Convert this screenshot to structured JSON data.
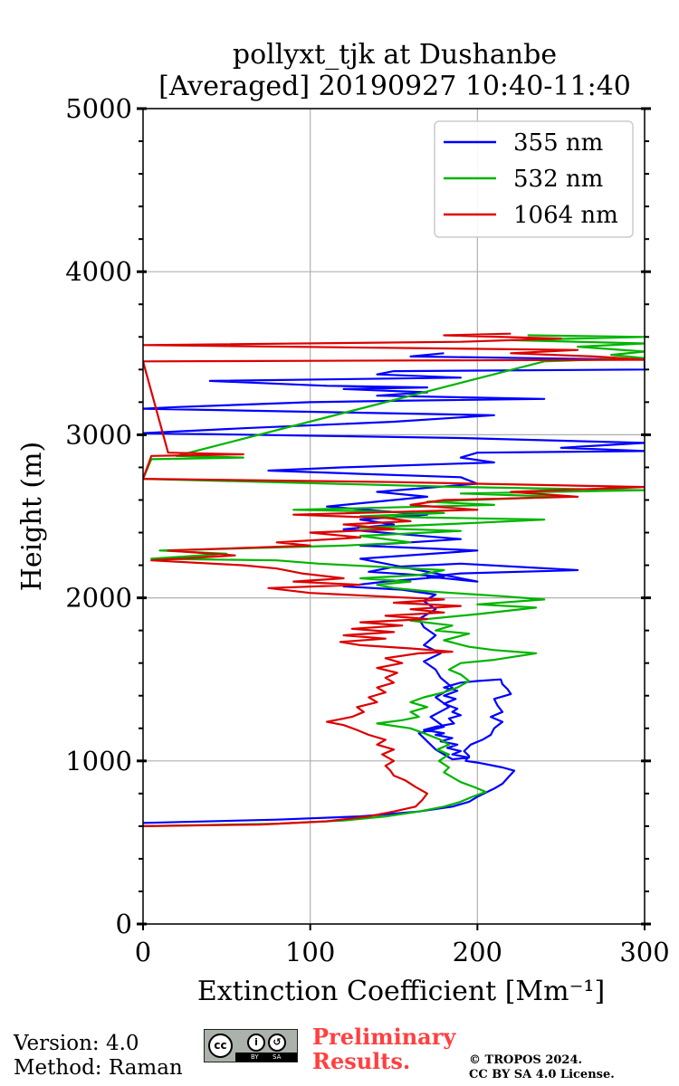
{
  "chart_data": {
    "type": "line",
    "title_line1": "pollyxt_tjk at Dushanbe",
    "title_line2": "[Averaged] 20190927 10:40-11:40",
    "xlabel": "Extinction Coefficient [Mm⁻¹]",
    "ylabel": "Height (m)",
    "xlim": [
      0,
      300
    ],
    "ylim": [
      0,
      5000
    ],
    "xticks": [
      0,
      100,
      200,
      300
    ],
    "yticks": [
      0,
      1000,
      2000,
      3000,
      4000,
      5000
    ],
    "grid": true,
    "legend_position": "top-right",
    "series": [
      {
        "name": "355 nm",
        "color": "#0000ff",
        "points": [
          [
            0,
            620
          ],
          [
            80,
            640
          ],
          [
            130,
            660
          ],
          [
            165,
            690
          ],
          [
            185,
            720
          ],
          [
            195,
            750
          ],
          [
            200,
            780
          ],
          [
            204,
            800
          ],
          [
            210,
            830
          ],
          [
            215,
            860
          ],
          [
            222,
            940
          ],
          [
            215,
            960
          ],
          [
            200,
            990
          ],
          [
            193,
            1000
          ],
          [
            195,
            1030
          ],
          [
            192,
            1060
          ],
          [
            196,
            1100
          ],
          [
            203,
            1130
          ],
          [
            208,
            1160
          ],
          [
            210,
            1200
          ],
          [
            215,
            1240
          ],
          [
            208,
            1270
          ],
          [
            215,
            1300
          ],
          [
            212,
            1340
          ],
          [
            210,
            1380
          ],
          [
            220,
            1410
          ],
          [
            218,
            1440
          ],
          [
            215,
            1470
          ],
          [
            214,
            1500
          ],
          [
            200,
            1490
          ],
          [
            190,
            1480
          ],
          [
            183,
            1460
          ],
          [
            180,
            1450
          ],
          [
            188,
            1430
          ],
          [
            180,
            1400
          ],
          [
            187,
            1380
          ],
          [
            180,
            1350
          ],
          [
            188,
            1320
          ],
          [
            185,
            1300
          ],
          [
            190,
            1280
          ],
          [
            183,
            1260
          ],
          [
            186,
            1230
          ],
          [
            175,
            1210
          ],
          [
            168,
            1190
          ],
          [
            180,
            1170
          ],
          [
            175,
            1160
          ],
          [
            185,
            1140
          ],
          [
            178,
            1120
          ],
          [
            188,
            1100
          ],
          [
            182,
            1080
          ],
          [
            190,
            1060
          ],
          [
            185,
            1040
          ],
          [
            195,
            1020
          ],
          [
            185,
            1010
          ],
          [
            175,
            1070
          ],
          [
            170,
            1120
          ],
          [
            165,
            1170
          ],
          [
            180,
            1210
          ],
          [
            172,
            1270
          ],
          [
            183,
            1330
          ],
          [
            175,
            1390
          ],
          [
            185,
            1450
          ],
          [
            178,
            1510
          ],
          [
            175,
            1560
          ],
          [
            168,
            1610
          ],
          [
            178,
            1660
          ],
          [
            168,
            1710
          ],
          [
            175,
            1770
          ],
          [
            168,
            1820
          ],
          [
            165,
            1870
          ],
          [
            175,
            1930
          ],
          [
            168,
            1980
          ],
          [
            175,
            2020
          ],
          [
            155,
            2050
          ],
          [
            120,
            2070
          ],
          [
            145,
            2100
          ],
          [
            180,
            2130
          ],
          [
            135,
            2160
          ],
          [
            150,
            2190
          ],
          [
            190,
            2210
          ],
          [
            260,
            2170
          ],
          [
            190,
            2150
          ],
          [
            170,
            2130
          ],
          [
            200,
            2100
          ],
          [
            130,
            2240
          ],
          [
            200,
            2290
          ],
          [
            130,
            2320
          ],
          [
            190,
            2360
          ],
          [
            155,
            2390
          ],
          [
            120,
            2420
          ],
          [
            150,
            2450
          ],
          [
            130,
            2480
          ],
          [
            170,
            2510
          ],
          [
            110,
            2560
          ],
          [
            150,
            2600
          ],
          [
            170,
            2620
          ],
          [
            140,
            2650
          ],
          [
            200,
            2700
          ],
          [
            190,
            2740
          ],
          [
            130,
            2760
          ],
          [
            75,
            2780
          ],
          [
            120,
            2800
          ],
          [
            210,
            2830
          ],
          [
            190,
            2860
          ],
          [
            200,
            2890
          ],
          [
            300,
            2900
          ],
          [
            250,
            2920
          ],
          [
            300,
            2950
          ],
          [
            190,
            2980
          ],
          [
            0,
            3010
          ],
          [
            60,
            3040
          ],
          [
            150,
            3080
          ],
          [
            210,
            3120
          ],
          [
            0,
            3160
          ],
          [
            20,
            3170
          ],
          [
            100,
            3200
          ],
          [
            160,
            3210
          ],
          [
            240,
            3220
          ],
          [
            140,
            3240
          ],
          [
            170,
            3260
          ],
          [
            120,
            3280
          ],
          [
            170,
            3290
          ],
          [
            110,
            3300
          ],
          [
            40,
            3330
          ],
          [
            190,
            3350
          ],
          [
            140,
            3370
          ],
          [
            150,
            3390
          ],
          [
            300,
            3400
          ],
          [
            300,
            3460
          ],
          [
            160,
            3480
          ],
          [
            180,
            3500
          ]
        ]
      },
      {
        "name": "532 nm",
        "color": "#00b400",
        "points": [
          [
            0,
            600
          ],
          [
            80,
            615
          ],
          [
            120,
            635
          ],
          [
            145,
            660
          ],
          [
            165,
            690
          ],
          [
            180,
            720
          ],
          [
            190,
            750
          ],
          [
            197,
            780
          ],
          [
            205,
            810
          ],
          [
            198,
            840
          ],
          [
            190,
            870
          ],
          [
            185,
            900
          ],
          [
            180,
            930
          ],
          [
            183,
            960
          ],
          [
            177,
            1000
          ],
          [
            183,
            1040
          ],
          [
            176,
            1070
          ],
          [
            183,
            1100
          ],
          [
            178,
            1130
          ],
          [
            168,
            1170
          ],
          [
            160,
            1200
          ],
          [
            140,
            1230
          ],
          [
            155,
            1250
          ],
          [
            165,
            1270
          ],
          [
            160,
            1300
          ],
          [
            170,
            1330
          ],
          [
            160,
            1360
          ],
          [
            168,
            1390
          ],
          [
            180,
            1420
          ],
          [
            188,
            1450
          ],
          [
            195,
            1490
          ],
          [
            190,
            1530
          ],
          [
            183,
            1560
          ],
          [
            190,
            1600
          ],
          [
            210,
            1620
          ],
          [
            235,
            1660
          ],
          [
            210,
            1680
          ],
          [
            195,
            1700
          ],
          [
            180,
            1740
          ],
          [
            195,
            1780
          ],
          [
            175,
            1800
          ],
          [
            185,
            1830
          ],
          [
            160,
            1860
          ],
          [
            200,
            1900
          ],
          [
            235,
            1940
          ],
          [
            200,
            1960
          ],
          [
            240,
            1990
          ],
          [
            215,
            2010
          ],
          [
            170,
            2040
          ],
          [
            150,
            2060
          ],
          [
            140,
            2080
          ],
          [
            160,
            2100
          ],
          [
            130,
            2120
          ],
          [
            165,
            2140
          ],
          [
            180,
            2170
          ],
          [
            105,
            2210
          ],
          [
            80,
            2230
          ],
          [
            5,
            2240
          ],
          [
            50,
            2270
          ],
          [
            10,
            2290
          ],
          [
            120,
            2320
          ],
          [
            160,
            2340
          ],
          [
            130,
            2380
          ],
          [
            190,
            2410
          ],
          [
            130,
            2430
          ],
          [
            200,
            2460
          ],
          [
            240,
            2480
          ],
          [
            130,
            2500
          ],
          [
            180,
            2520
          ],
          [
            90,
            2540
          ],
          [
            210,
            2570
          ],
          [
            170,
            2590
          ],
          [
            250,
            2620
          ],
          [
            190,
            2640
          ],
          [
            300,
            2660
          ],
          [
            190,
            2680
          ],
          [
            0,
            2730
          ],
          [
            5,
            2850
          ],
          [
            60,
            2860
          ],
          [
            20,
            2870
          ],
          [
            240,
            3450
          ],
          [
            300,
            3470
          ],
          [
            280,
            3490
          ],
          [
            300,
            3510
          ],
          [
            260,
            3540
          ],
          [
            300,
            3560
          ],
          [
            220,
            3580
          ],
          [
            300,
            3600
          ],
          [
            230,
            3610
          ]
        ]
      },
      {
        "name": "1064 nm",
        "color": "#dc0000",
        "points": [
          [
            0,
            600
          ],
          [
            70,
            610
          ],
          [
            110,
            630
          ],
          [
            135,
            660
          ],
          [
            150,
            690
          ],
          [
            163,
            720
          ],
          [
            167,
            760
          ],
          [
            170,
            800
          ],
          [
            163,
            840
          ],
          [
            157,
            880
          ],
          [
            150,
            910
          ],
          [
            148,
            940
          ],
          [
            145,
            970
          ],
          [
            150,
            1000
          ],
          [
            143,
            1040
          ],
          [
            150,
            1070
          ],
          [
            140,
            1100
          ],
          [
            145,
            1130
          ],
          [
            135,
            1160
          ],
          [
            128,
            1190
          ],
          [
            120,
            1220
          ],
          [
            110,
            1240
          ],
          [
            125,
            1270
          ],
          [
            132,
            1300
          ],
          [
            128,
            1330
          ],
          [
            140,
            1360
          ],
          [
            135,
            1390
          ],
          [
            145,
            1420
          ],
          [
            140,
            1450
          ],
          [
            150,
            1480
          ],
          [
            145,
            1510
          ],
          [
            152,
            1540
          ],
          [
            140,
            1570
          ],
          [
            155,
            1600
          ],
          [
            145,
            1630
          ],
          [
            165,
            1660
          ],
          [
            185,
            1670
          ],
          [
            160,
            1690
          ],
          [
            130,
            1710
          ],
          [
            118,
            1730
          ],
          [
            145,
            1750
          ],
          [
            120,
            1770
          ],
          [
            150,
            1790
          ],
          [
            125,
            1810
          ],
          [
            155,
            1830
          ],
          [
            130,
            1850
          ],
          [
            170,
            1870
          ],
          [
            145,
            1890
          ],
          [
            180,
            1910
          ],
          [
            160,
            1930
          ],
          [
            190,
            1950
          ],
          [
            150,
            1970
          ],
          [
            180,
            1990
          ],
          [
            140,
            2010
          ],
          [
            100,
            2030
          ],
          [
            75,
            2060
          ],
          [
            130,
            2080
          ],
          [
            90,
            2100
          ],
          [
            120,
            2120
          ],
          [
            95,
            2150
          ],
          [
            80,
            2180
          ],
          [
            60,
            2200
          ],
          [
            5,
            2230
          ],
          [
            55,
            2260
          ],
          [
            15,
            2290
          ],
          [
            100,
            2320
          ],
          [
            80,
            2340
          ],
          [
            130,
            2370
          ],
          [
            100,
            2400
          ],
          [
            150,
            2420
          ],
          [
            120,
            2450
          ],
          [
            160,
            2470
          ],
          [
            145,
            2490
          ],
          [
            90,
            2510
          ],
          [
            200,
            2540
          ],
          [
            160,
            2570
          ],
          [
            180,
            2600
          ],
          [
            260,
            2620
          ],
          [
            220,
            2650
          ],
          [
            300,
            2680
          ],
          [
            150,
            2710
          ],
          [
            0,
            2730
          ],
          [
            5,
            2870
          ],
          [
            60,
            2880
          ],
          [
            15,
            2890
          ],
          [
            0,
            3450
          ],
          [
            300,
            3460
          ],
          [
            270,
            3480
          ],
          [
            220,
            3500
          ],
          [
            260,
            3520
          ],
          [
            0,
            3550
          ],
          [
            190,
            3570
          ],
          [
            250,
            3590
          ],
          [
            180,
            3610
          ],
          [
            220,
            3620
          ]
        ]
      }
    ]
  },
  "footer": {
    "version": "Version: 4.0",
    "method": "Method: Raman",
    "prelim_line1": "Preliminary",
    "prelim_line2": "Results.",
    "copyright_line1": "© TROPOS 2024.",
    "copyright_line2": "CC BY SA 4.0 License.",
    "badge_cc": "cc",
    "badge_by": "BY",
    "badge_sa": "SA"
  }
}
